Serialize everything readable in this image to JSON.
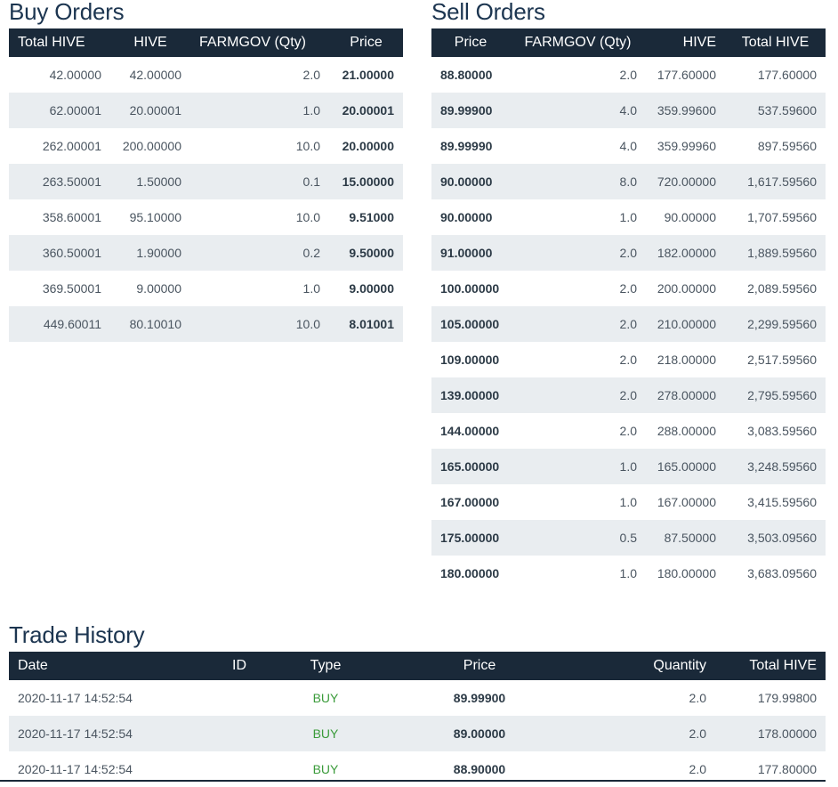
{
  "buy_orders": {
    "title": "Buy Orders",
    "headers": [
      "Total HIVE",
      "HIVE",
      "FARMGOV (Qty)",
      "Price"
    ],
    "rows": [
      [
        "42.00000",
        "42.00000",
        "2.0",
        "21.00000"
      ],
      [
        "62.00001",
        "20.00001",
        "1.0",
        "20.00001"
      ],
      [
        "262.00001",
        "200.00000",
        "10.0",
        "20.00000"
      ],
      [
        "263.50001",
        "1.50000",
        "0.1",
        "15.00000"
      ],
      [
        "358.60001",
        "95.10000",
        "10.0",
        "9.51000"
      ],
      [
        "360.50001",
        "1.90000",
        "0.2",
        "9.50000"
      ],
      [
        "369.50001",
        "9.00000",
        "1.0",
        "9.00000"
      ],
      [
        "449.60011",
        "80.10010",
        "10.0",
        "8.01001"
      ]
    ]
  },
  "sell_orders": {
    "title": "Sell Orders",
    "headers": [
      "Price",
      "FARMGOV (Qty)",
      "HIVE",
      "Total HIVE"
    ],
    "rows": [
      [
        "88.80000",
        "2.0",
        "177.60000",
        "177.60000"
      ],
      [
        "89.99900",
        "4.0",
        "359.99600",
        "537.59600"
      ],
      [
        "89.99990",
        "4.0",
        "359.99960",
        "897.59560"
      ],
      [
        "90.00000",
        "8.0",
        "720.00000",
        "1,617.59560"
      ],
      [
        "90.00000",
        "1.0",
        "90.00000",
        "1,707.59560"
      ],
      [
        "91.00000",
        "2.0",
        "182.00000",
        "1,889.59560"
      ],
      [
        "100.00000",
        "2.0",
        "200.00000",
        "2,089.59560"
      ],
      [
        "105.00000",
        "2.0",
        "210.00000",
        "2,299.59560"
      ],
      [
        "109.00000",
        "2.0",
        "218.00000",
        "2,517.59560"
      ],
      [
        "139.00000",
        "2.0",
        "278.00000",
        "2,795.59560"
      ],
      [
        "144.00000",
        "2.0",
        "288.00000",
        "3,083.59560"
      ],
      [
        "165.00000",
        "1.0",
        "165.00000",
        "3,248.59560"
      ],
      [
        "167.00000",
        "1.0",
        "167.00000",
        "3,415.59560"
      ],
      [
        "175.00000",
        "0.5",
        "87.50000",
        "3,503.09560"
      ],
      [
        "180.00000",
        "1.0",
        "180.00000",
        "3,683.09560"
      ]
    ]
  },
  "trade_history": {
    "title": "Trade History",
    "headers": [
      "Date",
      "ID",
      "Type",
      "Price",
      "Quantity",
      "Total HIVE"
    ],
    "rows": [
      [
        "2020-11-17 14:52:54",
        "",
        "BUY",
        "89.99900",
        "2.0",
        "179.99800"
      ],
      [
        "2020-11-17 14:52:54",
        "",
        "BUY",
        "89.00000",
        "2.0",
        "178.00000"
      ],
      [
        "2020-11-17 14:52:54",
        "",
        "BUY",
        "88.90000",
        "2.0",
        "177.80000"
      ]
    ]
  },
  "colors": {
    "header_bg": "#1a2939",
    "title": "#1c3550",
    "stripe": "#e9edf0",
    "buy_type": "#3a9b3a"
  }
}
